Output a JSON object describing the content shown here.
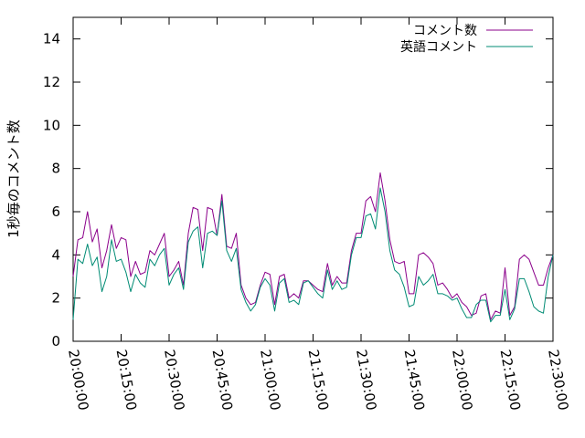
{
  "chart_data": {
    "type": "line",
    "title": "",
    "xlabel": "",
    "ylabel": "1秒毎のコメント数",
    "ylim": [
      0,
      15
    ],
    "yticks": [
      0,
      2,
      4,
      6,
      8,
      10,
      12,
      14
    ],
    "xlim": [
      "20:00:00",
      "22:30:00"
    ],
    "xticks": [
      "20:00:00",
      "20:15:00",
      "20:30:00",
      "20:45:00",
      "21:00:00",
      "21:15:00",
      "21:30:00",
      "21:45:00",
      "22:00:00",
      "22:15:00",
      "22:30:00"
    ],
    "x_interval_minutes": 1.5,
    "x_start": "20:00:00",
    "grid": false,
    "legend": "top-right",
    "series": [
      {
        "name": "コメント数",
        "color": "#8b008b",
        "values": [
          3.0,
          4.7,
          4.8,
          6.0,
          4.6,
          5.2,
          3.4,
          4.2,
          5.4,
          4.3,
          4.8,
          4.7,
          3.0,
          3.7,
          3.1,
          3.2,
          4.2,
          4.0,
          4.5,
          5.0,
          3.0,
          3.3,
          3.7,
          2.6,
          5.0,
          6.2,
          6.1,
          4.2,
          6.2,
          6.1,
          4.9,
          6.8,
          4.4,
          4.3,
          5.0,
          2.6,
          2.0,
          1.7,
          1.8,
          2.6,
          3.2,
          3.1,
          1.7,
          3.0,
          3.1,
          2.0,
          2.2,
          2.0,
          2.8,
          2.8,
          2.6,
          2.4,
          2.3,
          3.6,
          2.6,
          3.0,
          2.7,
          2.7,
          4.2,
          5.0,
          5.0,
          6.5,
          6.7,
          6.0,
          7.8,
          6.5,
          4.7,
          3.7,
          3.6,
          3.7,
          2.2,
          2.2,
          4.0,
          4.1,
          3.9,
          3.6,
          2.6,
          2.7,
          2.4,
          2.0,
          2.2,
          1.8,
          1.6,
          1.2,
          1.3,
          2.1,
          2.2,
          1.0,
          1.4,
          1.3,
          3.4,
          1.2,
          1.6,
          3.8,
          4.0,
          3.8,
          3.2,
          2.6,
          2.6,
          3.4,
          4.0
        ]
      },
      {
        "name": "英語コメント",
        "color": "#008b74",
        "values": [
          1.0,
          3.8,
          3.6,
          4.5,
          3.5,
          3.9,
          2.3,
          3.0,
          4.7,
          3.7,
          3.8,
          3.2,
          2.3,
          3.1,
          2.7,
          2.5,
          3.8,
          3.5,
          4.0,
          4.3,
          2.6,
          3.1,
          3.4,
          2.4,
          4.6,
          5.1,
          5.3,
          3.4,
          5.0,
          5.1,
          4.9,
          6.5,
          4.2,
          3.7,
          4.3,
          2.4,
          1.8,
          1.4,
          1.7,
          2.5,
          2.9,
          2.6,
          1.4,
          2.7,
          2.9,
          1.8,
          1.9,
          1.7,
          2.7,
          2.8,
          2.5,
          2.2,
          2.0,
          3.3,
          2.4,
          2.8,
          2.4,
          2.5,
          4.0,
          4.8,
          4.8,
          5.8,
          5.9,
          5.2,
          7.1,
          6.0,
          4.2,
          3.3,
          3.1,
          2.5,
          1.6,
          1.7,
          3.0,
          2.6,
          2.8,
          3.1,
          2.2,
          2.2,
          2.1,
          1.9,
          2.0,
          1.5,
          1.1,
          1.1,
          1.7,
          1.9,
          1.9,
          0.9,
          1.2,
          1.2,
          2.4,
          1.0,
          1.5,
          2.9,
          2.9,
          2.3,
          1.6,
          1.4,
          1.3,
          3.0,
          4.0
        ]
      }
    ]
  }
}
